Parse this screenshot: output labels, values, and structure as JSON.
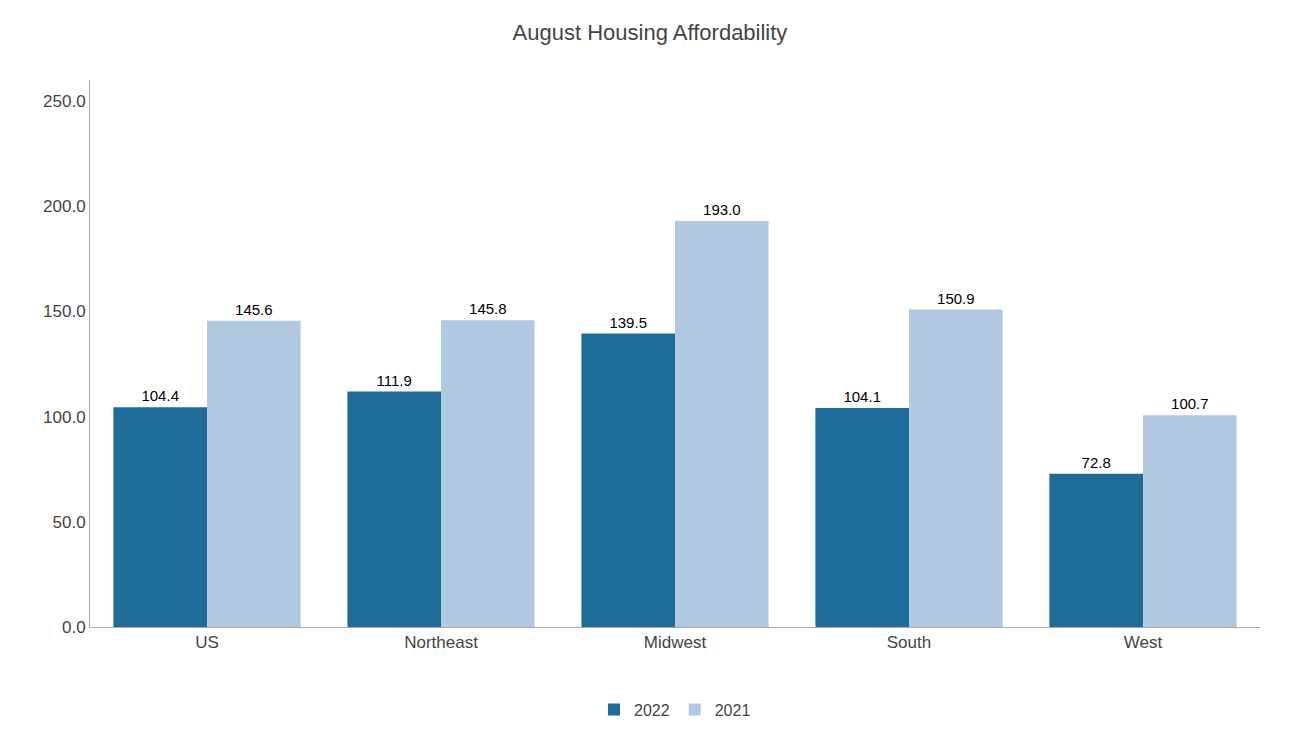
{
  "chart_data": {
    "type": "bar",
    "title": "August Housing Affordability",
    "categories": [
      "US",
      "Northeast",
      "Midwest",
      "South",
      "West"
    ],
    "series": [
      {
        "name": "2022",
        "color": "#1F6B9A",
        "values": [
          104.4,
          111.9,
          139.5,
          104.1,
          72.8
        ],
        "value_labels": [
          "104.4",
          "111.9",
          "139.5",
          "104.1",
          "72.8"
        ]
      },
      {
        "name": "2021",
        "color": "#B0C8E0",
        "values": [
          145.6,
          145.8,
          193.0,
          150.9,
          100.7
        ],
        "value_labels": [
          "145.6",
          "145.8",
          "193.0",
          "150.9",
          "100.7"
        ]
      }
    ],
    "ylim": [
      0,
      260
    ],
    "yticks": [
      {
        "value": 0,
        "label": "0.0"
      },
      {
        "value": 50,
        "label": "50.0"
      },
      {
        "value": 100,
        "label": "100.0"
      },
      {
        "value": 150,
        "label": "150.0"
      },
      {
        "value": 200,
        "label": "200.0"
      },
      {
        "value": 250,
        "label": "250.0"
      }
    ],
    "grid": false,
    "legend": "bottom",
    "data_labels": true
  }
}
